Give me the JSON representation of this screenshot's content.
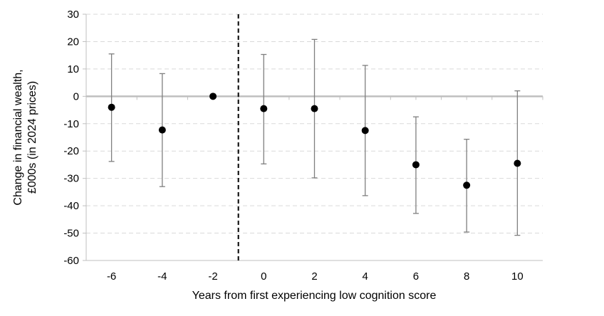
{
  "chart_data": {
    "type": "scatter",
    "subtype": "point-estimates-with-error-bars",
    "xlabel": "Years from first experiencing low cognition score",
    "ylabel_lines": [
      "Change in financial wealth,",
      "£000s (in 2024 prices)"
    ],
    "x_tick_labels": [
      "-6",
      "-4",
      "-2",
      "0",
      "2",
      "4",
      "6",
      "8",
      "10"
    ],
    "y_tick_labels": [
      "30",
      "20",
      "10",
      "0",
      "-10",
      "-20",
      "-30",
      "-40",
      "-50",
      "-60"
    ],
    "x": [
      -6,
      -4,
      -2,
      0,
      2,
      4,
      6,
      8,
      10
    ],
    "y": [
      -4,
      -12.3,
      0,
      -4.5,
      -4.5,
      -12.5,
      -25,
      -32.5,
      -24.5
    ],
    "ci_low": [
      -23.8,
      -33,
      0,
      -24.7,
      -29.8,
      -36.3,
      -42.8,
      -49.6,
      -50.8
    ],
    "ci_high": [
      15.5,
      8.3,
      0,
      15.3,
      20.8,
      11.3,
      -7.5,
      -15.7,
      2
    ],
    "ylim": [
      -60,
      30
    ],
    "y_step": 10,
    "xlim": [
      -7,
      11
    ],
    "reference_line_x": -1,
    "reference_line_style": "dashed",
    "zero_line": true,
    "grid": "horizontal dashed",
    "colors": {
      "point": "#000000",
      "error_bar": "#7f7f7f",
      "zero_line": "#bfbfbf",
      "grid": "#d9d9d9",
      "axis": "#bfbfbf",
      "reference_line": "#000000"
    }
  }
}
